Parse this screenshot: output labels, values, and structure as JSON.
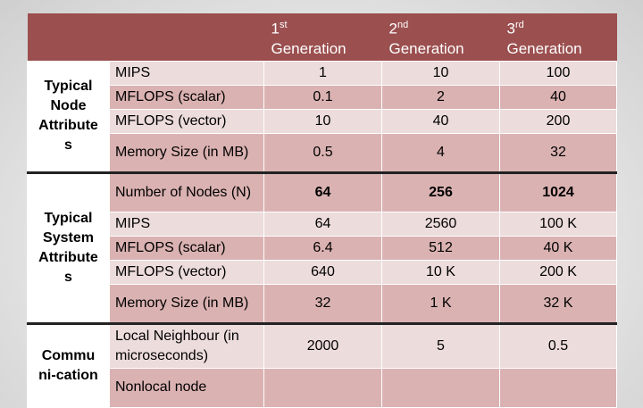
{
  "header": {
    "gen1_num": "1",
    "gen1_sup": "st",
    "gen1_word": "Generation",
    "gen2_num": "2",
    "gen2_sup": "nd",
    "gen2_word": "Generation",
    "gen3_num": "3",
    "gen3_sup": "rd",
    "gen3_word": "Generation"
  },
  "groups": {
    "node": "Typical Node Attribute s",
    "system": "Typical System Attribute s",
    "comm": "Commu ni-cation"
  },
  "node_rows": [
    {
      "attr": "MIPS",
      "g1": "1",
      "g2": "10",
      "g3": "100"
    },
    {
      "attr": "MFLOPS (scalar)",
      "g1": "0.1",
      "g2": "2",
      "g3": "40"
    },
    {
      "attr": "MFLOPS (vector)",
      "g1": "10",
      "g2": "40",
      "g3": "200"
    },
    {
      "attr": "Memory Size (in MB)",
      "g1": "0.5",
      "g2": "4",
      "g3": "32"
    }
  ],
  "system_rows": [
    {
      "attr": "Number of Nodes (N)",
      "g1": "64",
      "g2": "256",
      "g3": "1024"
    },
    {
      "attr": "MIPS",
      "g1": "64",
      "g2": "2560",
      "g3": "100 K"
    },
    {
      "attr": "MFLOPS (scalar)",
      "g1": "6.4",
      "g2": "512",
      "g3": "40 K"
    },
    {
      "attr": "MFLOPS (vector)",
      "g1": "640",
      "g2": "10 K",
      "g3": "200 K"
    },
    {
      "attr": "Memory Size (in MB)",
      "g1": "32",
      "g2": "1 K",
      "g3": "32 K"
    }
  ],
  "comm_rows": [
    {
      "attr": "Local Neighbour (in microseconds)",
      "g1": "2000",
      "g2": "5",
      "g3": "0.5"
    },
    {
      "attr": "Nonlocal node",
      "g1": "",
      "g2": "",
      "g3": ""
    }
  ]
}
